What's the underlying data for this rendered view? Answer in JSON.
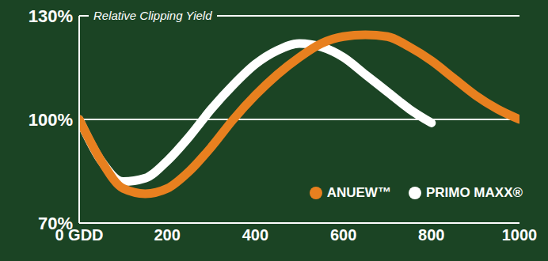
{
  "chart_data": {
    "type": "line",
    "title": "Relative Clipping Yield",
    "x": [
      0,
      50,
      100,
      150,
      200,
      250,
      300,
      350,
      400,
      450,
      500,
      550,
      600,
      650,
      700,
      750,
      800,
      850,
      900,
      950,
      1000
    ],
    "series": [
      {
        "name": "PRIMO MAXX®",
        "color": "#ffffff",
        "values": [
          100,
          88,
          82,
          83,
          88,
          95,
          103,
          110,
          116,
          120,
          122,
          121,
          118,
          113,
          108,
          103,
          99,
          null,
          null,
          null,
          null
        ]
      },
      {
        "name": "ANUEW™",
        "color": "#e8801f",
        "values": [
          100,
          88,
          80,
          78.5,
          80,
          85,
          92,
          100,
          107,
          113,
          118,
          122,
          124,
          124.5,
          124,
          121,
          117,
          112,
          107,
          103,
          100
        ]
      }
    ],
    "xlim": [
      0,
      1000
    ],
    "xticks": [
      {
        "value": 0,
        "label": "0 GDD"
      },
      200,
      400,
      600,
      800,
      1000
    ],
    "ylim": [
      70,
      130
    ],
    "yticks": [
      {
        "value": 70,
        "label": "70%"
      },
      {
        "value": 100,
        "label": "100%"
      },
      {
        "value": 130,
        "label": "130%"
      }
    ],
    "grid": true,
    "legend": "bottom-right"
  }
}
